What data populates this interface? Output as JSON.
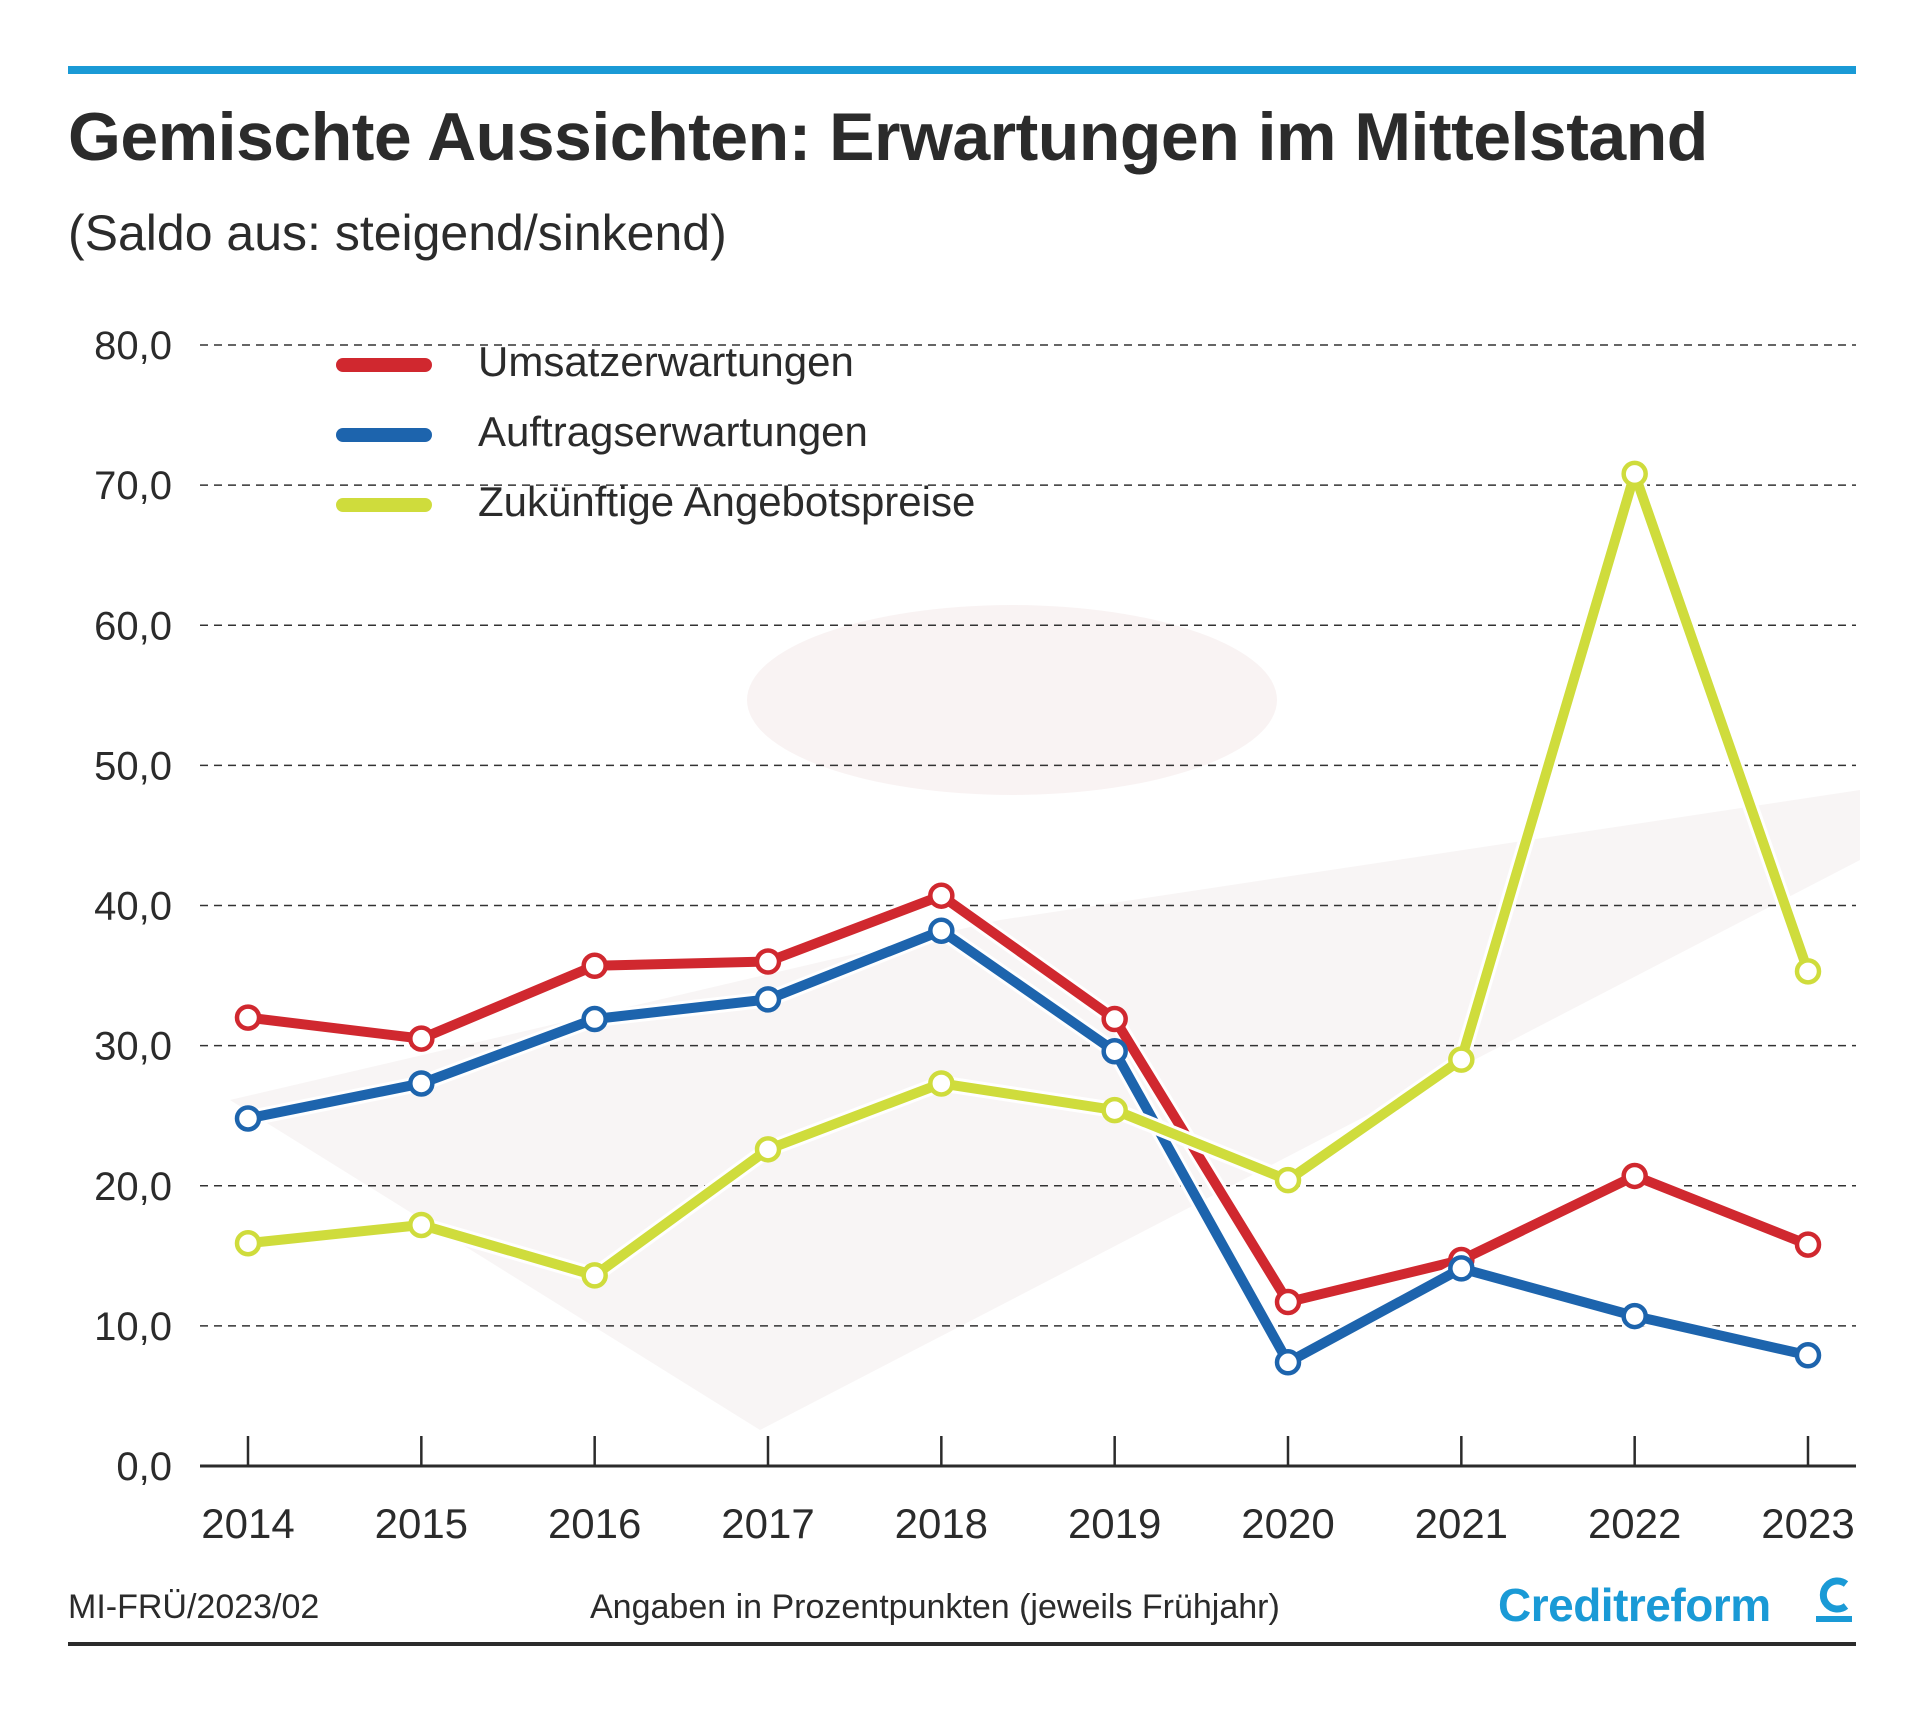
{
  "header": {
    "title": "Gemischte Aussichten: Erwartungen im Mittelstand",
    "subtitle": "(Saldo aus: steigend/sinkend)"
  },
  "footer": {
    "code": "MI-FRÜ/2023/02",
    "note": "Angaben in Prozentpunkten (jeweils Frühjahr)",
    "brand": "Creditreform",
    "brand_icon": "creditreform-c-logo"
  },
  "colors": {
    "rule": "#1a9ad6",
    "umsatz": "#d0282f",
    "auftrag": "#1d64ad",
    "preise": "#cfdc3c"
  },
  "chart_data": {
    "type": "line",
    "title": "Gemischte Aussichten: Erwartungen im Mittelstand",
    "subtitle": "(Saldo aus: steigend/sinkend)",
    "x": [
      "2014",
      "2015",
      "2016",
      "2017",
      "2018",
      "2019",
      "2020",
      "2021",
      "2022",
      "2023"
    ],
    "ylim": [
      0,
      80
    ],
    "yticks": [
      "0,0",
      "10,0",
      "20,0",
      "30,0",
      "40,0",
      "50,0",
      "60,0",
      "70,0",
      "80,0"
    ],
    "grid": true,
    "legend_position": "top-left",
    "series": [
      {
        "name": "Umsatzerwartungen",
        "color": "#d0282f",
        "values": [
          32.0,
          30.5,
          35.7,
          36.0,
          40.7,
          31.9,
          11.7,
          14.7,
          20.7,
          15.8
        ]
      },
      {
        "name": "Auftragserwartungen",
        "color": "#1d64ad",
        "values": [
          24.8,
          27.3,
          31.9,
          33.3,
          38.2,
          29.6,
          7.4,
          14.1,
          10.7,
          7.9
        ]
      },
      {
        "name": "Zukünftige Angebotspreise",
        "color": "#cfdc3c",
        "values": [
          15.9,
          17.2,
          13.6,
          22.6,
          27.3,
          25.4,
          20.4,
          29.0,
          70.8,
          35.3
        ]
      }
    ]
  }
}
